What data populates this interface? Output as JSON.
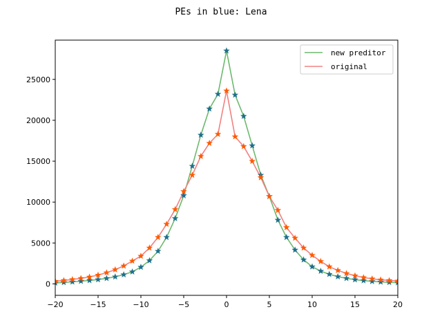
{
  "chart_data": {
    "type": "line",
    "title": "PEs in blue: Lena",
    "xlabel": "",
    "ylabel": "",
    "xlim": [
      -20,
      20
    ],
    "ylim": [
      -1400,
      29800
    ],
    "x_ticks": [
      -20,
      -15,
      -10,
      -5,
      0,
      5,
      10,
      15,
      20
    ],
    "y_ticks": [
      0,
      5000,
      10000,
      15000,
      20000,
      25000
    ],
    "legend_position": "top-right",
    "grid": false,
    "x": [
      -20,
      -19,
      -18,
      -17,
      -16,
      -15,
      -14,
      -13,
      -12,
      -11,
      -10,
      -9,
      -8,
      -7,
      -6,
      -5,
      -4,
      -3,
      -2,
      -1,
      0,
      1,
      2,
      3,
      4,
      5,
      6,
      7,
      8,
      9,
      10,
      11,
      12,
      13,
      14,
      15,
      16,
      17,
      18,
      19,
      20
    ],
    "series": [
      {
        "name": "new preditor",
        "color": "#6cb96c",
        "marker_color": "#1f6f8b",
        "values": [
          120,
          180,
          250,
          330,
          420,
          530,
          680,
          870,
          1130,
          1480,
          2050,
          2850,
          4000,
          5700,
          8000,
          10800,
          14400,
          18200,
          21400,
          23200,
          28500,
          23100,
          20500,
          16900,
          13300,
          10700,
          7800,
          5700,
          4150,
          2950,
          2100,
          1560,
          1180,
          890,
          680,
          520,
          400,
          310,
          240,
          190,
          150
        ]
      },
      {
        "name": "original",
        "color": "#f28080",
        "marker_color": "#ff5a00",
        "values": [
          330,
          420,
          540,
          680,
          850,
          1080,
          1370,
          1740,
          2200,
          2800,
          3400,
          4400,
          5700,
          7300,
          9100,
          11300,
          13300,
          15600,
          17200,
          18300,
          23600,
          18000,
          16800,
          15000,
          13000,
          10700,
          9000,
          6900,
          5600,
          4400,
          3500,
          2750,
          2100,
          1650,
          1280,
          1000,
          780,
          620,
          500,
          420,
          360
        ]
      }
    ]
  }
}
